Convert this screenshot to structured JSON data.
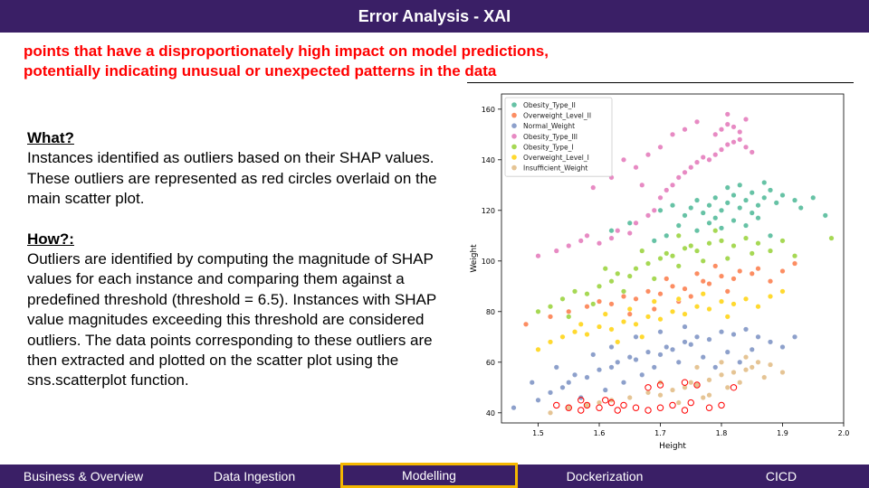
{
  "title": "Error Analysis - XAI",
  "subtitle": {
    "line1": "points that have a disproportionately high impact on model predictions,",
    "line2": "potentially indicating unusual or unexpected patterns in the data"
  },
  "what": {
    "heading": "What?",
    "text": "Instances identified as outliers based on their SHAP values. These outliers are represented as red circles overlaid on the main scatter plot."
  },
  "how": {
    "heading": "How?:",
    "text": "Outliers are identified by computing the magnitude of SHAP values for each instance and comparing them against a predefined threshold (threshold = 6.5). Instances with SHAP value magnitudes exceeding this threshold are considered outliers. The data points corresponding to these outliers are then extracted and plotted on the scatter plot using the sns.scatterplot function."
  },
  "nav": {
    "items": [
      "Business & Overview",
      "Data Ingestion",
      "Modelling",
      "Dockerization",
      "CICD"
    ],
    "active_index": 2
  },
  "colors": {
    "brand": "#3a1f66",
    "accent": "#f5b800",
    "subtitle": "#ff0000"
  },
  "chart_data": {
    "type": "scatter",
    "xlabel": "Height",
    "ylabel": "Weight",
    "xlim": [
      1.44,
      2.0
    ],
    "ylim": [
      36,
      166
    ],
    "xticks": [
      1.5,
      1.6,
      1.7,
      1.8,
      1.9,
      2.0
    ],
    "yticks": [
      40,
      60,
      80,
      100,
      120,
      140,
      160
    ],
    "legend_position": "top-left",
    "grid": false,
    "series": [
      {
        "name": "Obesity_Type_II",
        "color": "#66c2a5",
        "points": [
          [
            1.62,
            112
          ],
          [
            1.65,
            115
          ],
          [
            1.68,
            118
          ],
          [
            1.7,
            120
          ],
          [
            1.72,
            122
          ],
          [
            1.74,
            118
          ],
          [
            1.75,
            121
          ],
          [
            1.76,
            124
          ],
          [
            1.77,
            119
          ],
          [
            1.78,
            122
          ],
          [
            1.79,
            125
          ],
          [
            1.8,
            120
          ],
          [
            1.81,
            123
          ],
          [
            1.82,
            126
          ],
          [
            1.83,
            121
          ],
          [
            1.84,
            124
          ],
          [
            1.85,
            127
          ],
          [
            1.86,
            122
          ],
          [
            1.87,
            125
          ],
          [
            1.88,
            128
          ],
          [
            1.89,
            123
          ],
          [
            1.9,
            126
          ],
          [
            1.92,
            124
          ],
          [
            1.93,
            121
          ],
          [
            1.95,
            125
          ],
          [
            1.97,
            118
          ],
          [
            1.76,
            112
          ],
          [
            1.78,
            115
          ],
          [
            1.8,
            113
          ],
          [
            1.82,
            116
          ],
          [
            1.84,
            114
          ],
          [
            1.86,
            117
          ],
          [
            1.88,
            110
          ],
          [
            1.73,
            114
          ],
          [
            1.71,
            110
          ],
          [
            1.69,
            108
          ],
          [
            1.81,
            129
          ],
          [
            1.83,
            130
          ],
          [
            1.87,
            131
          ],
          [
            1.79,
            117
          ],
          [
            1.85,
            119
          ]
        ]
      },
      {
        "name": "Overweight_Level_II",
        "color": "#fc8d62",
        "points": [
          [
            1.48,
            75
          ],
          [
            1.52,
            78
          ],
          [
            1.55,
            80
          ],
          [
            1.58,
            82
          ],
          [
            1.6,
            84
          ],
          [
            1.62,
            83
          ],
          [
            1.64,
            86
          ],
          [
            1.66,
            85
          ],
          [
            1.68,
            88
          ],
          [
            1.7,
            87
          ],
          [
            1.72,
            90
          ],
          [
            1.74,
            89
          ],
          [
            1.75,
            86
          ],
          [
            1.77,
            92
          ],
          [
            1.78,
            91
          ],
          [
            1.8,
            94
          ],
          [
            1.82,
            93
          ],
          [
            1.83,
            96
          ],
          [
            1.85,
            95
          ],
          [
            1.86,
            97
          ],
          [
            1.88,
            92
          ],
          [
            1.9,
            96
          ],
          [
            1.92,
            99
          ],
          [
            1.79,
            98
          ],
          [
            1.81,
            88
          ],
          [
            1.76,
            95
          ],
          [
            1.73,
            84
          ],
          [
            1.69,
            81
          ],
          [
            1.65,
            79
          ],
          [
            1.71,
            93
          ]
        ]
      },
      {
        "name": "Normal_Weight",
        "color": "#8da0cb",
        "points": [
          [
            1.46,
            42
          ],
          [
            1.5,
            45
          ],
          [
            1.52,
            48
          ],
          [
            1.54,
            50
          ],
          [
            1.55,
            52
          ],
          [
            1.56,
            55
          ],
          [
            1.58,
            54
          ],
          [
            1.6,
            57
          ],
          [
            1.62,
            58
          ],
          [
            1.63,
            60
          ],
          [
            1.65,
            62
          ],
          [
            1.66,
            61
          ],
          [
            1.68,
            64
          ],
          [
            1.7,
            63
          ],
          [
            1.71,
            66
          ],
          [
            1.72,
            65
          ],
          [
            1.74,
            68
          ],
          [
            1.75,
            67
          ],
          [
            1.76,
            70
          ],
          [
            1.78,
            69
          ],
          [
            1.8,
            72
          ],
          [
            1.82,
            71
          ],
          [
            1.84,
            73
          ],
          [
            1.86,
            70
          ],
          [
            1.88,
            68
          ],
          [
            1.9,
            66
          ],
          [
            1.92,
            70
          ],
          [
            1.57,
            46
          ],
          [
            1.61,
            49
          ],
          [
            1.64,
            52
          ],
          [
            1.67,
            55
          ],
          [
            1.69,
            58
          ],
          [
            1.73,
            60
          ],
          [
            1.77,
            62
          ],
          [
            1.81,
            64
          ],
          [
            1.85,
            65
          ],
          [
            1.59,
            63
          ],
          [
            1.53,
            58
          ],
          [
            1.49,
            52
          ],
          [
            1.66,
            70
          ],
          [
            1.7,
            72
          ],
          [
            1.74,
            74
          ],
          [
            1.62,
            66
          ],
          [
            1.79,
            58
          ],
          [
            1.83,
            60
          ]
        ]
      },
      {
        "name": "Obesity_Type_III",
        "color": "#e78ac3",
        "points": [
          [
            1.5,
            102
          ],
          [
            1.53,
            104
          ],
          [
            1.55,
            106
          ],
          [
            1.57,
            108
          ],
          [
            1.58,
            110
          ],
          [
            1.6,
            107
          ],
          [
            1.62,
            109
          ],
          [
            1.63,
            112
          ],
          [
            1.65,
            111
          ],
          [
            1.66,
            115
          ],
          [
            1.68,
            118
          ],
          [
            1.69,
            120
          ],
          [
            1.7,
            125
          ],
          [
            1.71,
            128
          ],
          [
            1.72,
            130
          ],
          [
            1.73,
            133
          ],
          [
            1.74,
            135
          ],
          [
            1.75,
            137
          ],
          [
            1.76,
            139
          ],
          [
            1.77,
            141
          ],
          [
            1.78,
            140
          ],
          [
            1.79,
            142
          ],
          [
            1.8,
            144
          ],
          [
            1.81,
            146
          ],
          [
            1.82,
            147
          ],
          [
            1.83,
            148
          ],
          [
            1.84,
            145
          ],
          [
            1.85,
            143
          ],
          [
            1.79,
            150
          ],
          [
            1.8,
            152
          ],
          [
            1.81,
            154
          ],
          [
            1.82,
            153
          ],
          [
            1.83,
            151
          ],
          [
            1.84,
            156
          ],
          [
            1.81,
            158
          ],
          [
            1.74,
            152
          ],
          [
            1.76,
            155
          ],
          [
            1.72,
            150
          ],
          [
            1.64,
            140
          ],
          [
            1.66,
            137
          ],
          [
            1.68,
            142
          ],
          [
            1.7,
            145
          ],
          [
            1.67,
            130
          ],
          [
            1.62,
            133
          ],
          [
            1.59,
            129
          ]
        ]
      },
      {
        "name": "Obesity_Type_I",
        "color": "#a6d854",
        "points": [
          [
            1.5,
            80
          ],
          [
            1.52,
            82
          ],
          [
            1.54,
            85
          ],
          [
            1.56,
            88
          ],
          [
            1.58,
            87
          ],
          [
            1.6,
            90
          ],
          [
            1.62,
            92
          ],
          [
            1.63,
            95
          ],
          [
            1.65,
            94
          ],
          [
            1.66,
            97
          ],
          [
            1.68,
            99
          ],
          [
            1.7,
            101
          ],
          [
            1.71,
            103
          ],
          [
            1.72,
            102
          ],
          [
            1.74,
            105
          ],
          [
            1.75,
            106
          ],
          [
            1.76,
            104
          ],
          [
            1.78,
            107
          ],
          [
            1.8,
            108
          ],
          [
            1.82,
            106
          ],
          [
            1.84,
            109
          ],
          [
            1.86,
            107
          ],
          [
            1.88,
            104
          ],
          [
            1.9,
            108
          ],
          [
            1.92,
            102
          ],
          [
            1.98,
            109
          ],
          [
            1.55,
            78
          ],
          [
            1.59,
            83
          ],
          [
            1.64,
            88
          ],
          [
            1.69,
            93
          ],
          [
            1.73,
            98
          ],
          [
            1.77,
            100
          ],
          [
            1.81,
            101
          ],
          [
            1.85,
            103
          ],
          [
            1.61,
            97
          ],
          [
            1.67,
            104
          ],
          [
            1.73,
            110
          ],
          [
            1.79,
            112
          ]
        ]
      },
      {
        "name": "Overweight_Level_I",
        "color": "#ffd92f",
        "points": [
          [
            1.5,
            65
          ],
          [
            1.52,
            68
          ],
          [
            1.54,
            70
          ],
          [
            1.56,
            72
          ],
          [
            1.58,
            71
          ],
          [
            1.6,
            74
          ],
          [
            1.62,
            73
          ],
          [
            1.64,
            76
          ],
          [
            1.66,
            75
          ],
          [
            1.68,
            78
          ],
          [
            1.7,
            77
          ],
          [
            1.72,
            80
          ],
          [
            1.74,
            79
          ],
          [
            1.76,
            82
          ],
          [
            1.78,
            81
          ],
          [
            1.8,
            84
          ],
          [
            1.82,
            83
          ],
          [
            1.84,
            85
          ],
          [
            1.86,
            82
          ],
          [
            1.88,
            86
          ],
          [
            1.9,
            88
          ],
          [
            1.57,
            75
          ],
          [
            1.61,
            79
          ],
          [
            1.65,
            81
          ],
          [
            1.69,
            84
          ],
          [
            1.73,
            85
          ],
          [
            1.77,
            87
          ],
          [
            1.81,
            78
          ],
          [
            1.63,
            68
          ],
          [
            1.67,
            70
          ]
        ]
      },
      {
        "name": "Insufficient_Weight",
        "color": "#e5c494",
        "points": [
          [
            1.52,
            40
          ],
          [
            1.55,
            42
          ],
          [
            1.58,
            43
          ],
          [
            1.6,
            44
          ],
          [
            1.62,
            45
          ],
          [
            1.65,
            46
          ],
          [
            1.68,
            48
          ],
          [
            1.7,
            47
          ],
          [
            1.72,
            49
          ],
          [
            1.74,
            50
          ],
          [
            1.75,
            52
          ],
          [
            1.76,
            51
          ],
          [
            1.78,
            53
          ],
          [
            1.8,
            55
          ],
          [
            1.82,
            56
          ],
          [
            1.84,
            57
          ],
          [
            1.85,
            58
          ],
          [
            1.86,
            60
          ],
          [
            1.88,
            59
          ],
          [
            1.9,
            56
          ],
          [
            1.78,
            47
          ],
          [
            1.81,
            50
          ],
          [
            1.83,
            52
          ],
          [
            1.87,
            54
          ],
          [
            1.73,
            44
          ],
          [
            1.77,
            46
          ],
          [
            1.8,
            60
          ],
          [
            1.76,
            58
          ],
          [
            1.84,
            62
          ],
          [
            1.7,
            52
          ]
        ]
      }
    ],
    "outliers": {
      "color": "#ff0000",
      "points": [
        [
          1.53,
          43
        ],
        [
          1.55,
          42
        ],
        [
          1.57,
          41
        ],
        [
          1.58,
          43
        ],
        [
          1.6,
          42
        ],
        [
          1.62,
          44
        ],
        [
          1.63,
          41
        ],
        [
          1.64,
          43
        ],
        [
          1.66,
          42
        ],
        [
          1.68,
          41
        ],
        [
          1.7,
          42
        ],
        [
          1.72,
          43
        ],
        [
          1.74,
          41
        ],
        [
          1.75,
          44
        ],
        [
          1.78,
          42
        ],
        [
          1.8,
          43
        ],
        [
          1.68,
          50
        ],
        [
          1.7,
          51
        ],
        [
          1.74,
          52
        ],
        [
          1.76,
          51
        ],
        [
          1.82,
          50
        ],
        [
          1.57,
          45
        ],
        [
          1.61,
          45
        ]
      ]
    }
  }
}
